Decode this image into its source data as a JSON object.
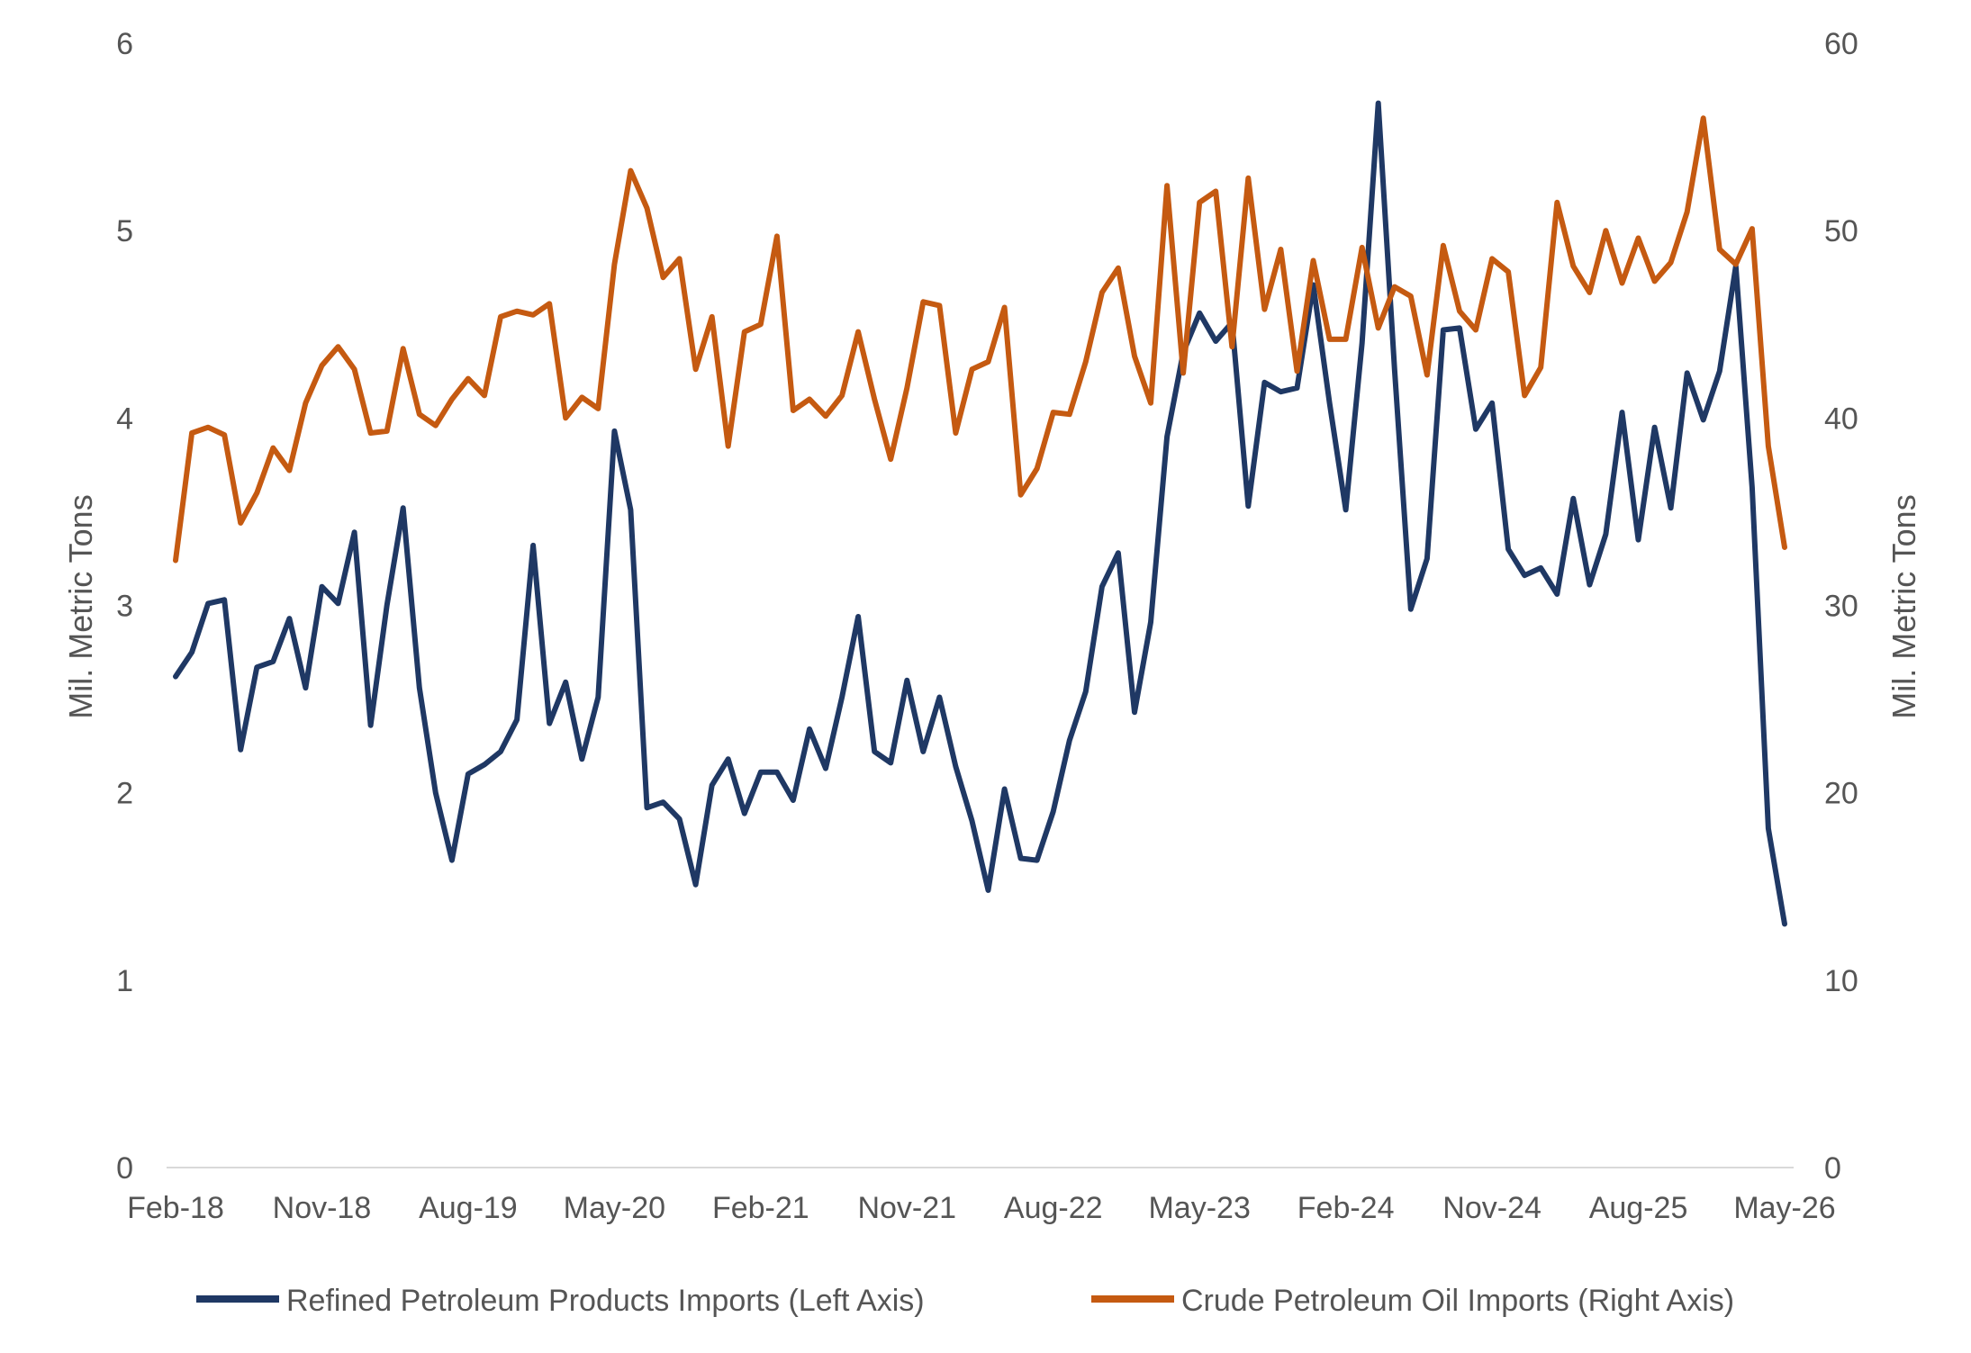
{
  "chart_data": {
    "type": "line",
    "ylabel_left": "Mil. Metric Tons",
    "ylabel_right": "Mil. Metric Tons",
    "ylim_left": [
      0,
      6
    ],
    "ylim_right": [
      0,
      60
    ],
    "yticks_left": [
      "0",
      "1",
      "2",
      "3",
      "4",
      "5",
      "6"
    ],
    "yticks_right": [
      "0",
      "10",
      "20",
      "30",
      "40",
      "50",
      "60"
    ],
    "xtick_labels": [
      "Feb-18",
      "Nov-18",
      "Aug-19",
      "May-20",
      "Feb-21",
      "Nov-21",
      "Aug-22",
      "May-23",
      "Feb-24",
      "Nov-24",
      "Aug-25",
      "May-26"
    ],
    "grid": false,
    "legend_position": "bottom",
    "series": [
      {
        "name": "Refined Petroleum Products Imports (Left Axis)",
        "axis": "left",
        "color": "#1f3864",
        "values": [
          2.62,
          2.75,
          3.01,
          3.03,
          2.23,
          2.67,
          2.7,
          2.93,
          2.56,
          3.1,
          3.01,
          3.39,
          2.36,
          3.0,
          3.52,
          2.56,
          2.0,
          1.64,
          2.1,
          2.15,
          2.22,
          2.39,
          3.32,
          2.37,
          2.59,
          2.18,
          2.51,
          3.93,
          3.51,
          1.92,
          1.95,
          1.86,
          1.51,
          2.04,
          2.18,
          1.89,
          2.11,
          2.11,
          1.96,
          2.34,
          2.13,
          2.51,
          2.94,
          2.22,
          2.16,
          2.6,
          2.22,
          2.51,
          2.14,
          1.85,
          1.48,
          2.02,
          1.65,
          1.64,
          1.9,
          2.28,
          2.54,
          3.1,
          3.28,
          2.43,
          2.91,
          3.9,
          4.35,
          4.56,
          4.41,
          4.51,
          3.53,
          4.19,
          4.14,
          4.16,
          4.71,
          4.08,
          3.51,
          4.4,
          5.68,
          4.26,
          2.98,
          3.25,
          4.47,
          4.48,
          3.94,
          4.08,
          3.3,
          3.16,
          3.2,
          3.06,
          3.57,
          3.11,
          3.38,
          4.03,
          3.35,
          3.95,
          3.52,
          4.24,
          3.99,
          4.25,
          4.81,
          3.63,
          1.81,
          1.3
        ]
      },
      {
        "name": "Crude Petroleum Oil Imports (Right Axis)",
        "axis": "right",
        "color": "#c55a11",
        "values": [
          32.4,
          39.2,
          39.5,
          39.1,
          34.4,
          36.0,
          38.4,
          37.2,
          40.8,
          42.8,
          43.8,
          42.6,
          39.2,
          39.3,
          43.7,
          40.2,
          39.6,
          41.0,
          42.1,
          41.2,
          45.4,
          45.7,
          45.5,
          46.1,
          40.0,
          41.1,
          40.5,
          48.2,
          53.2,
          51.2,
          47.5,
          48.5,
          42.6,
          45.4,
          38.5,
          44.6,
          45.0,
          49.7,
          40.4,
          41.0,
          40.1,
          41.2,
          44.6,
          41.0,
          37.8,
          41.6,
          46.2,
          46.0,
          39.2,
          42.6,
          43.0,
          45.9,
          35.9,
          37.3,
          40.3,
          40.2,
          43.0,
          46.7,
          48.0,
          43.3,
          40.8,
          52.4,
          42.4,
          51.5,
          52.1,
          43.8,
          52.8,
          45.8,
          49.0,
          42.5,
          48.4,
          44.2,
          44.2,
          49.1,
          44.8,
          47.0,
          46.5,
          42.3,
          49.2,
          45.7,
          44.7,
          48.5,
          47.8,
          41.2,
          42.7,
          51.5,
          48.1,
          46.7,
          50.0,
          47.2,
          49.6,
          47.3,
          48.3,
          51.0,
          56.0,
          49.0,
          48.2,
          50.1,
          38.5,
          33.1
        ]
      }
    ]
  }
}
